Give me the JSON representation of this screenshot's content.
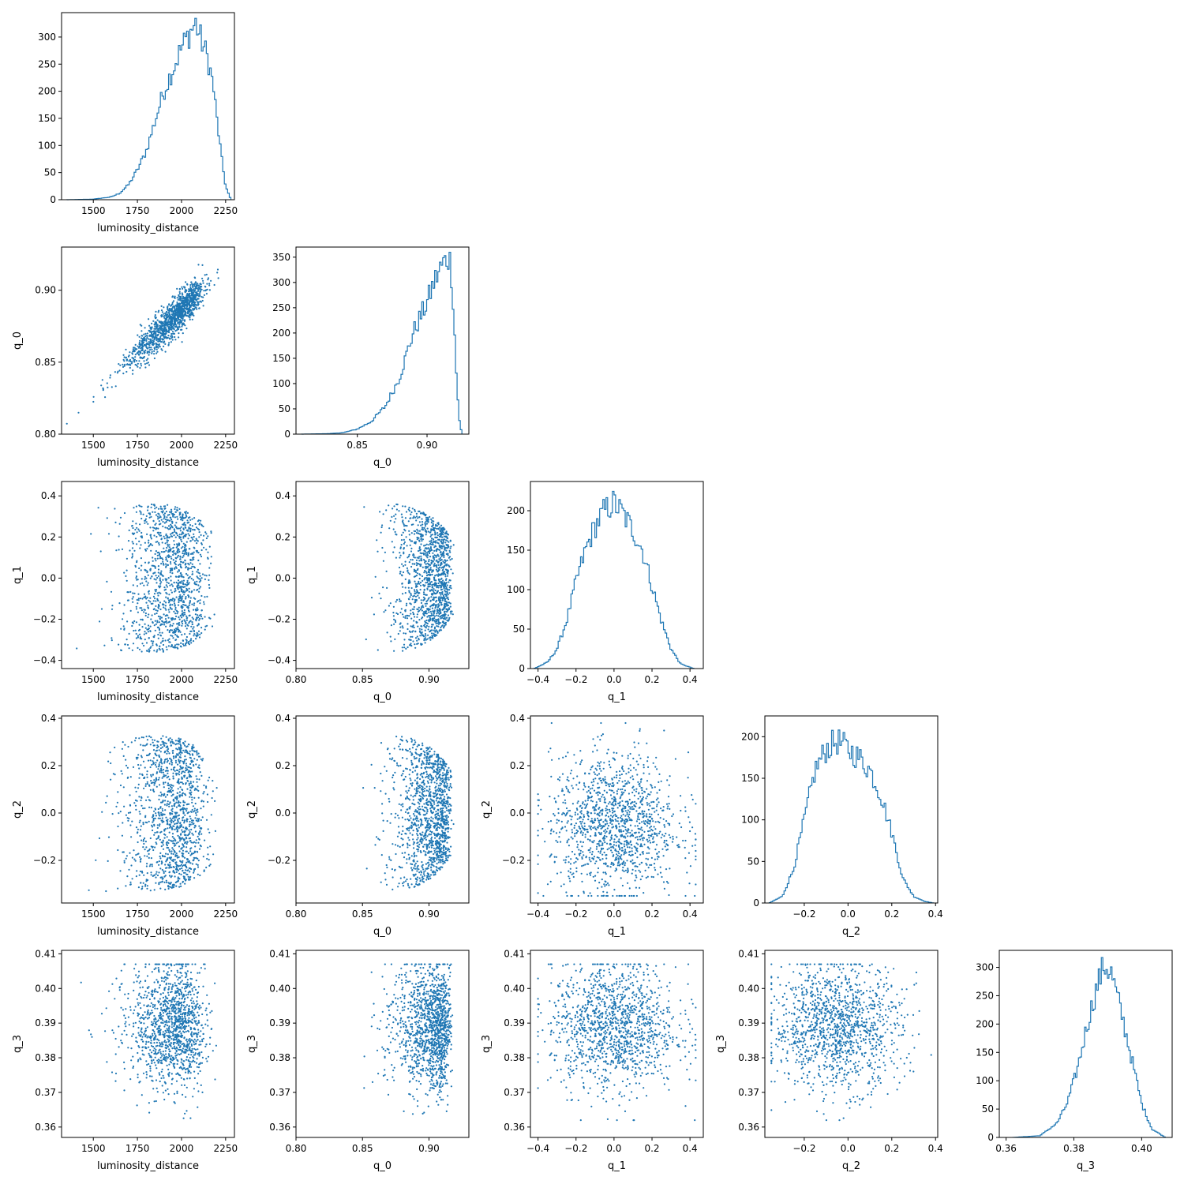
{
  "accent_color": "#1f77b4",
  "chart_data": {
    "type": "corner-plot",
    "params": [
      "luminosity_distance",
      "q_0",
      "q_1",
      "q_2",
      "q_3"
    ],
    "axes": {
      "luminosity_distance": {
        "range": [
          1320,
          2300
        ],
        "ticks": [
          1500,
          1750,
          2000,
          2250
        ],
        "tick_labels": [
          "1500",
          "1750",
          "2000",
          "2250"
        ]
      },
      "q_0": {
        "range": [
          0.8,
          0.93
        ],
        "ticks": [
          0.8,
          0.85,
          0.9
        ],
        "tick_labels": [
          "0.80",
          "0.85",
          "0.90"
        ]
      },
      "q_1": {
        "range": [
          -0.44,
          0.47
        ],
        "ticks": [
          -0.4,
          -0.2,
          0.0,
          0.2,
          0.4
        ],
        "tick_labels": [
          "−0.4",
          "−0.2",
          "0.0",
          "0.2",
          "0.4"
        ]
      },
      "q_2": {
        "range": [
          -0.38,
          0.41
        ],
        "ticks": [
          -0.2,
          0.0,
          0.2,
          0.4
        ],
        "tick_labels": [
          "−0.2",
          "0.0",
          "0.2",
          "0.4"
        ]
      },
      "q_3": {
        "range": [
          0.357,
          0.411
        ],
        "ticks": [
          0.36,
          0.37,
          0.38,
          0.39,
          0.4,
          0.41
        ],
        "tick_labels": [
          "0.36",
          "0.37",
          "0.38",
          "0.39",
          "0.40",
          "0.41"
        ]
      }
    },
    "hist_x_ticks": {
      "luminosity_distance": {
        "range": [
          1320,
          2300
        ],
        "ticks": [
          1500,
          1750,
          2000,
          2250
        ],
        "tick_labels": [
          "1500",
          "1750",
          "2000",
          "2250"
        ]
      },
      "q_0": {
        "range": [
          0.806,
          0.93
        ],
        "ticks": [
          0.85,
          0.9
        ],
        "tick_labels": [
          "0.85",
          "0.90"
        ]
      },
      "q_1": {
        "range": [
          -0.44,
          0.47
        ],
        "ticks": [
          -0.4,
          -0.2,
          0.0,
          0.2,
          0.4
        ],
        "tick_labels": [
          "−0.4",
          "−0.2",
          "0.0",
          "0.2",
          "0.4"
        ]
      },
      "q_2": {
        "range": [
          -0.38,
          0.41
        ],
        "ticks": [
          -0.2,
          0.0,
          0.2,
          0.4
        ],
        "tick_labels": [
          "−0.2",
          "0.0",
          "0.2",
          "0.4"
        ]
      },
      "q_3": {
        "range": [
          0.358,
          0.409
        ],
        "ticks": [
          0.36,
          0.38,
          0.4
        ],
        "tick_labels": [
          "0.36",
          "0.38",
          "0.40"
        ]
      }
    },
    "histograms": [
      {
        "param": "luminosity_distance",
        "ylim": [
          0,
          345
        ],
        "y_ticks": [
          0,
          50,
          100,
          150,
          200,
          250,
          300
        ],
        "bin_range": [
          1350,
          2280
        ],
        "peak_value": 326,
        "profile_x": [
          1350,
          1500,
          1600,
          1650,
          1700,
          1750,
          1800,
          1850,
          1900,
          1950,
          2000,
          2050,
          2080,
          2100,
          2150,
          2180,
          2200,
          2230,
          2250,
          2280
        ],
        "profile_y": [
          0,
          1,
          5,
          12,
          28,
          55,
          90,
          145,
          200,
          240,
          280,
          310,
          325,
          305,
          260,
          210,
          150,
          70,
          25,
          0
        ]
      },
      {
        "param": "q_0",
        "ylim": [
          0,
          370
        ],
        "y_ticks": [
          0,
          50,
          100,
          150,
          200,
          250,
          300,
          350
        ],
        "bin_range": [
          0.81,
          0.925
        ],
        "peak_value": 355,
        "profile_x": [
          0.81,
          0.83,
          0.84,
          0.85,
          0.86,
          0.87,
          0.88,
          0.89,
          0.9,
          0.905,
          0.91,
          0.915,
          0.917,
          0.919,
          0.921,
          0.923,
          0.925
        ],
        "profile_y": [
          0,
          1,
          3,
          10,
          25,
          55,
          110,
          200,
          260,
          300,
          330,
          350,
          340,
          250,
          120,
          30,
          0
        ]
      },
      {
        "param": "q_1",
        "ylim": [
          0,
          237
        ],
        "y_ticks": [
          0,
          50,
          100,
          150,
          200
        ],
        "bin_range": [
          -0.42,
          0.42
        ],
        "peak_value": 226,
        "profile_x": [
          -0.42,
          -0.35,
          -0.3,
          -0.25,
          -0.2,
          -0.15,
          -0.1,
          -0.05,
          0.0,
          0.05,
          0.1,
          0.15,
          0.2,
          0.25,
          0.3,
          0.35,
          0.42
        ],
        "profile_y": [
          0,
          8,
          25,
          60,
          110,
          150,
          180,
          200,
          210,
          195,
          175,
          150,
          105,
          60,
          25,
          6,
          0
        ]
      },
      {
        "param": "q_2",
        "ylim": [
          0,
          225
        ],
        "y_ticks": [
          0,
          50,
          100,
          150,
          200
        ],
        "bin_range": [
          -0.36,
          0.39
        ],
        "peak_value": 212,
        "profile_x": [
          -0.36,
          -0.3,
          -0.25,
          -0.2,
          -0.15,
          -0.1,
          -0.05,
          0.0,
          0.05,
          0.1,
          0.15,
          0.2,
          0.25,
          0.3,
          0.35,
          0.39
        ],
        "profile_y": [
          0,
          8,
          40,
          100,
          160,
          185,
          195,
          185,
          175,
          160,
          130,
          85,
          30,
          8,
          2,
          0
        ]
      },
      {
        "param": "q_3",
        "ylim": [
          0,
          330
        ],
        "y_ticks": [
          0,
          50,
          100,
          150,
          200,
          250,
          300
        ],
        "bin_range": [
          0.362,
          0.407
        ],
        "peak_value": 318,
        "profile_x": [
          0.362,
          0.37,
          0.375,
          0.378,
          0.381,
          0.384,
          0.387,
          0.389,
          0.391,
          0.394,
          0.397,
          0.4,
          0.403,
          0.407
        ],
        "profile_y": [
          0,
          3,
          25,
          60,
          120,
          200,
          270,
          305,
          290,
          220,
          140,
          60,
          15,
          0
        ]
      }
    ],
    "scatter_panels": [
      {
        "x": "luminosity_distance",
        "y": "q_0",
        "n_points": 1300
      },
      {
        "x": "luminosity_distance",
        "y": "q_1",
        "n_points": 1300
      },
      {
        "x": "q_0",
        "y": "q_1",
        "n_points": 1300
      },
      {
        "x": "luminosity_distance",
        "y": "q_2",
        "n_points": 1300
      },
      {
        "x": "q_0",
        "y": "q_2",
        "n_points": 1300
      },
      {
        "x": "q_1",
        "y": "q_2",
        "n_points": 1300
      },
      {
        "x": "luminosity_distance",
        "y": "q_3",
        "n_points": 1300
      },
      {
        "x": "q_0",
        "y": "q_3",
        "n_points": 1300
      },
      {
        "x": "q_1",
        "y": "q_3",
        "n_points": 1300
      },
      {
        "x": "q_2",
        "y": "q_3",
        "n_points": 1300
      }
    ],
    "summary": {
      "luminosity_distance": {
        "mode": 2070,
        "min": 1350,
        "max": 2280
      },
      "q_0": {
        "mode": 0.915,
        "min": 0.808,
        "max": 0.925
      },
      "q_1": {
        "mode": 0.0,
        "min": -0.4,
        "max": 0.43
      },
      "q_2": {
        "mode": -0.05,
        "min": -0.35,
        "max": 0.38
      },
      "q_3": {
        "mode": 0.389,
        "min": 0.362,
        "max": 0.407
      }
    }
  }
}
